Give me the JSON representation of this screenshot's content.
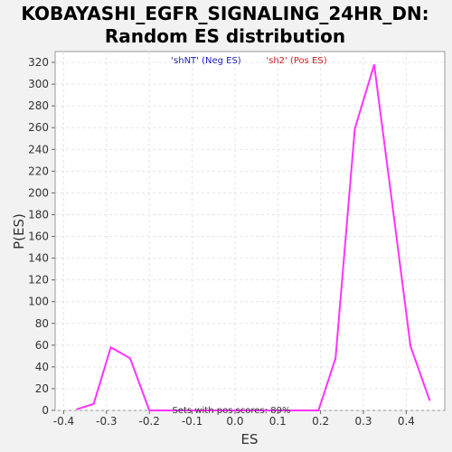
{
  "chart_data": {
    "type": "line",
    "title_line1": "KOBAYASHI_EGFR_SIGNALING_24HR_DN:",
    "title_line2": "Random ES distribution",
    "xlabel": "ES",
    "ylabel": "P(ES)",
    "xlim": [
      -0.42,
      0.49
    ],
    "ylim": [
      0,
      330
    ],
    "xticks": [
      -0.4,
      -0.3,
      -0.2,
      -0.1,
      0.0,
      0.1,
      0.2,
      0.3,
      0.4
    ],
    "xtick_labels": [
      "-0.4",
      "-0.3",
      "-0.2",
      "-0.1",
      "0.0",
      "0.1",
      "0.2",
      "0.3",
      "0.4"
    ],
    "yticks": [
      0,
      20,
      40,
      60,
      80,
      100,
      120,
      140,
      160,
      180,
      200,
      220,
      240,
      260,
      280,
      300,
      320
    ],
    "ytick_labels": [
      "0",
      "20",
      "40",
      "60",
      "80",
      "100",
      "120",
      "140",
      "160",
      "180",
      "200",
      "220",
      "240",
      "260",
      "280",
      "300",
      "320"
    ],
    "grid": true,
    "series": [
      {
        "color": "#ff33ff",
        "x": [
          -0.37,
          -0.33,
          -0.29,
          -0.245,
          -0.2,
          -0.16,
          -0.12,
          -0.08,
          -0.04,
          0.0,
          0.04,
          0.08,
          0.12,
          0.16,
          0.195,
          0.235,
          0.28,
          0.325,
          0.365,
          0.41,
          0.455
        ],
        "y": [
          1,
          6,
          58,
          48,
          0,
          0,
          0,
          0,
          0,
          0,
          0,
          0,
          0,
          0,
          0,
          48,
          259,
          318,
          197,
          59,
          9
        ]
      }
    ],
    "legend": [
      {
        "label": "'shNT' (Neg ES)",
        "color": "#2020c0"
      },
      {
        "label": "'sh2' (Pos ES)",
        "color": "#d02020"
      }
    ],
    "legend_placement": "top-center",
    "annotation": "Sets with pos scores: 89%"
  }
}
